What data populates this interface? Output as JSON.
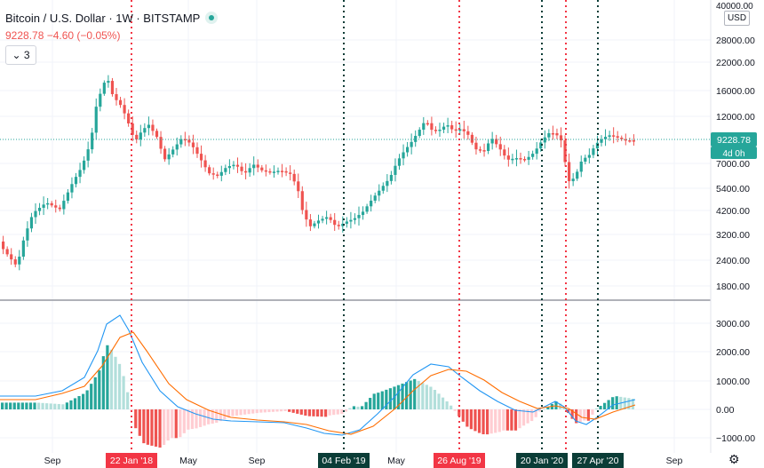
{
  "header": {
    "symbol": "Bitcoin / U.S. Dollar · 1W · BITSTAMP",
    "last_price": "9228.78",
    "change": "−4.60 (−0.05%)",
    "collapse_label": "3"
  },
  "price_axis": {
    "currency": "USD",
    "ticks": [
      "28000.00",
      "22000.00",
      "16000.00",
      "12000.00",
      "7000.00",
      "5400.00",
      "4200.00",
      "3200.00",
      "2400.00",
      "1800.00"
    ],
    "top_partial": "40000.00"
  },
  "price_badge": {
    "price": "9228.78",
    "countdown": "4d 0h"
  },
  "macd_axis": {
    "ticks": [
      "3000.00",
      "2000.00",
      "1000.00",
      "0.00",
      "−1000.00"
    ]
  },
  "time_axis": {
    "ticks": [
      "Sep",
      "May",
      "Sep",
      "May",
      "Sep"
    ]
  },
  "markers": [
    {
      "date": "22 Jan '18",
      "color": "red"
    },
    {
      "date": "04 Feb '19",
      "color": "green"
    },
    {
      "date": "26 Aug '19",
      "color": "red"
    },
    {
      "date": "20 Jan '20",
      "color": "green"
    },
    {
      "date": "27 Apr '20",
      "color": "green"
    }
  ],
  "colors": {
    "up": "#26a69a",
    "down": "#ef5350",
    "macd_line": "#2196f3",
    "signal_line": "#ff6d00",
    "marker_red": "#f23645",
    "marker_green": "#0b3d37"
  },
  "icons": {
    "toggle": "chevron-down-icon",
    "status": "dot-icon",
    "settings": "gear-icon"
  }
}
